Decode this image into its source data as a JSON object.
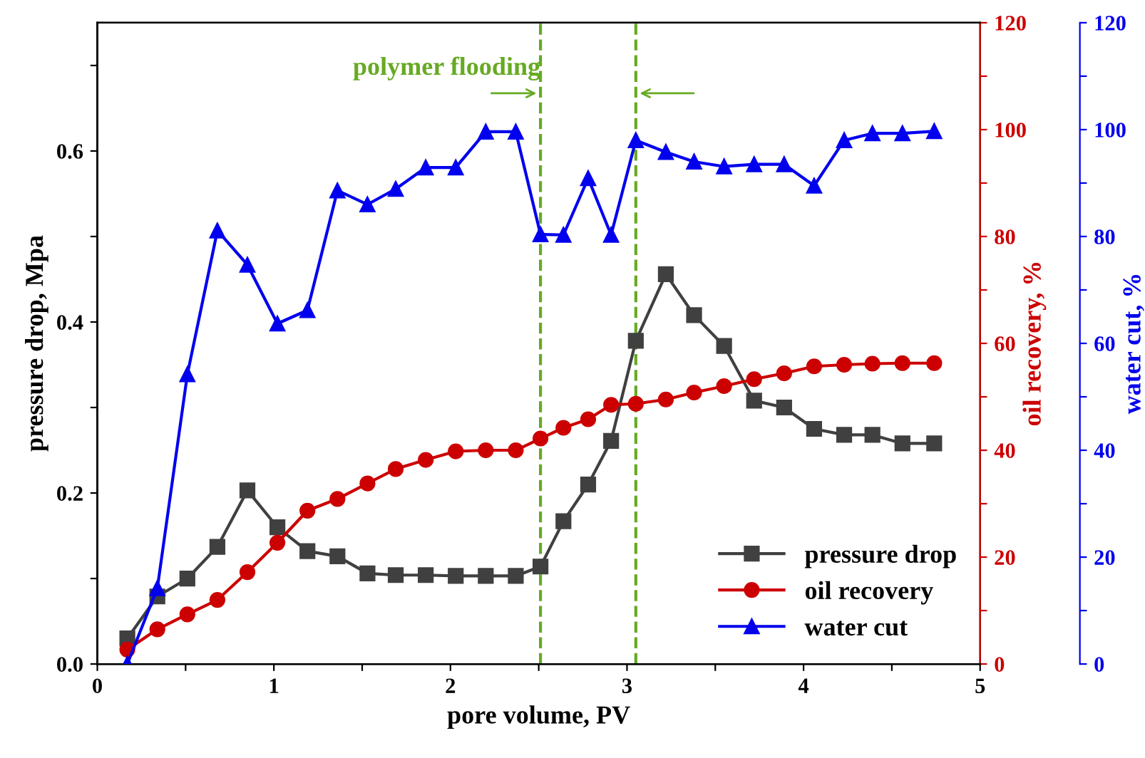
{
  "chart_data": {
    "type": "line",
    "xlabel": "pore volume, PV",
    "ylabel": "pressure drop, Mpa",
    "y2label": "oil recovery, %",
    "y3label": "water cut, %",
    "xlim": [
      0,
      5
    ],
    "xticks": [
      0,
      {
        "value": 0.5,
        "label": null
      },
      1,
      {
        "value": 1.5,
        "label": null
      },
      2,
      {
        "value": 2.5,
        "label": null
      },
      3,
      {
        "value": 3.5,
        "label": null
      },
      4,
      {
        "value": 4.5,
        "label": null
      },
      5
    ],
    "ylim": [
      0,
      0.75
    ],
    "yticks": [
      "0.0",
      {
        "value": 0.1,
        "label": null
      },
      {
        "value": 0.2,
        "label": "0.2"
      },
      {
        "value": 0.3,
        "label": null
      },
      {
        "value": 0.4,
        "label": "0.4"
      },
      {
        "value": 0.5,
        "label": null
      },
      {
        "value": 0.6,
        "label": "0.6"
      },
      {
        "value": 0.7,
        "label": null
      }
    ],
    "y2lim": [
      0,
      120
    ],
    "y2ticks": [
      0,
      {
        "value": 10,
        "label": null
      },
      20,
      {
        "value": 30,
        "label": null
      },
      40,
      {
        "value": 50,
        "label": null
      },
      60,
      {
        "value": 70,
        "label": null
      },
      80,
      {
        "value": 90,
        "label": null
      },
      100,
      {
        "value": 110,
        "label": null
      },
      120
    ],
    "y3lim": [
      0,
      120
    ],
    "y3ticks": [
      0,
      {
        "value": 10,
        "label": null
      },
      20,
      {
        "value": 30,
        "label": null
      },
      40,
      {
        "value": 50,
        "label": null
      },
      60,
      {
        "value": 70,
        "label": null
      },
      80,
      {
        "value": 90,
        "label": null
      },
      100,
      {
        "value": 110,
        "label": null
      },
      120
    ],
    "x": [
      0.17,
      0.34,
      0.51,
      0.68,
      0.85,
      1.02,
      1.19,
      1.36,
      1.53,
      1.69,
      1.86,
      2.03,
      2.2,
      2.37,
      2.51,
      2.64,
      2.78,
      2.91,
      3.05,
      3.22,
      3.38,
      3.55,
      3.72,
      3.89,
      4.06,
      4.23,
      4.39,
      4.56,
      4.74
    ],
    "series": [
      {
        "name": "pressure drop",
        "color": "#404040",
        "marker": "square",
        "values": [
          0.03,
          0.079,
          0.1,
          0.137,
          0.203,
          0.16,
          0.132,
          0.126,
          0.106,
          0.104,
          0.104,
          0.103,
          0.103,
          0.103,
          0.114,
          0.167,
          0.21,
          0.261,
          0.378,
          0.456,
          0.408,
          0.372,
          0.308,
          0.3,
          0.275,
          0.268,
          0.268,
          0.258,
          0.258
        ]
      },
      {
        "name": "oil recovery",
        "color": "#cc0000",
        "marker": "circle",
        "axis": "y2",
        "values": [
          2.7,
          6.5,
          9.3,
          12.0,
          17.2,
          22.7,
          28.7,
          30.9,
          33.8,
          36.5,
          38.2,
          39.8,
          40.0,
          40.0,
          42.2,
          44.2,
          45.8,
          48.5,
          48.7,
          49.5,
          50.8,
          52.0,
          53.3,
          54.4,
          55.7,
          56.0,
          56.2,
          56.3,
          56.3
        ]
      },
      {
        "name": "water cut",
        "color": "#0000ee",
        "marker": "triangle",
        "axis": "y3",
        "values": [
          0,
          14.2,
          54.2,
          81.1,
          74.7,
          63.7,
          66.2,
          88.6,
          86.0,
          88.9,
          92.9,
          92.9,
          99.6,
          99.6,
          80.4,
          80.3,
          90.9,
          80.3,
          98.0,
          95.8,
          94.0,
          93.1,
          93.5,
          93.5,
          89.5,
          98.0,
          99.3,
          99.3,
          99.7
        ]
      }
    ],
    "ref_lines": [
      {
        "axis": "x",
        "value": 2.51,
        "label": null,
        "color": "#66aa22",
        "line_style": "dashed"
      },
      {
        "axis": "x",
        "value": 3.05,
        "label": null,
        "color": "#66aa22",
        "line_style": "dashed"
      }
    ],
    "annotations": [
      "polymer flooding"
    ],
    "legend": "bottom right",
    "grid": false,
    "line_style": "solid"
  }
}
